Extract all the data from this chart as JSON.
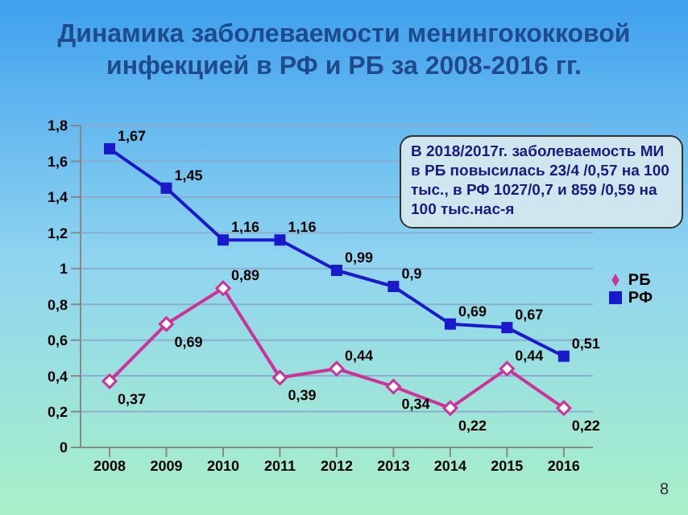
{
  "chart_data": {
    "type": "line",
    "title": "Динамика заболеваемости менингококковой инфекцией в РФ и РБ за 2008-2016 гг.",
    "categories": [
      "2008",
      "2009",
      "2010",
      "2011",
      "2012",
      "2013",
      "2014",
      "2015",
      "2016"
    ],
    "series": [
      {
        "name": "РБ",
        "color": "#cc3399",
        "marker": "diamond",
        "values": [
          0.37,
          0.69,
          0.89,
          0.39,
          0.44,
          0.34,
          0.22,
          0.44,
          0.22
        ],
        "value_labels": [
          "0,37",
          "0,69",
          "0,89",
          "0,39",
          "0,44",
          "0,34",
          "0,22",
          "0,44",
          "0,22"
        ]
      },
      {
        "name": "РФ",
        "color": "#1a1acc",
        "marker": "square",
        "values": [
          1.67,
          1.45,
          1.16,
          1.16,
          0.99,
          0.9,
          0.69,
          0.67,
          0.51
        ],
        "value_labels": [
          "1,67",
          "1,45",
          "1,16",
          "1,16",
          "0,99",
          "0,9",
          "0,69",
          "0,67",
          "0,51"
        ]
      }
    ],
    "ylim": [
      0,
      1.8
    ],
    "yticks": [
      0,
      {
        "value": 0.2,
        "label": "0,2"
      },
      {
        "value": 0.4,
        "label": "0,4"
      },
      {
        "value": 0.6,
        "label": "0,6"
      },
      {
        "value": 0.8,
        "label": "0,8"
      },
      1,
      {
        "value": 1.2,
        "label": "1,2"
      },
      {
        "value": 1.4,
        "label": "1,4"
      },
      {
        "value": 1.6,
        "label": "1,6"
      },
      {
        "value": 1.8,
        "label": "1,8"
      }
    ],
    "grid": "y",
    "legend": "right",
    "line_style": "solid",
    "annotations": [
      "В 2018/2017г. заболеваемость МИ в РБ  повысилась 23/4 /0,57 на 100 тыс., в РФ 1027/0,7 и 859 /0,59 на 100 тыс.нас-я",
      "8"
    ]
  }
}
